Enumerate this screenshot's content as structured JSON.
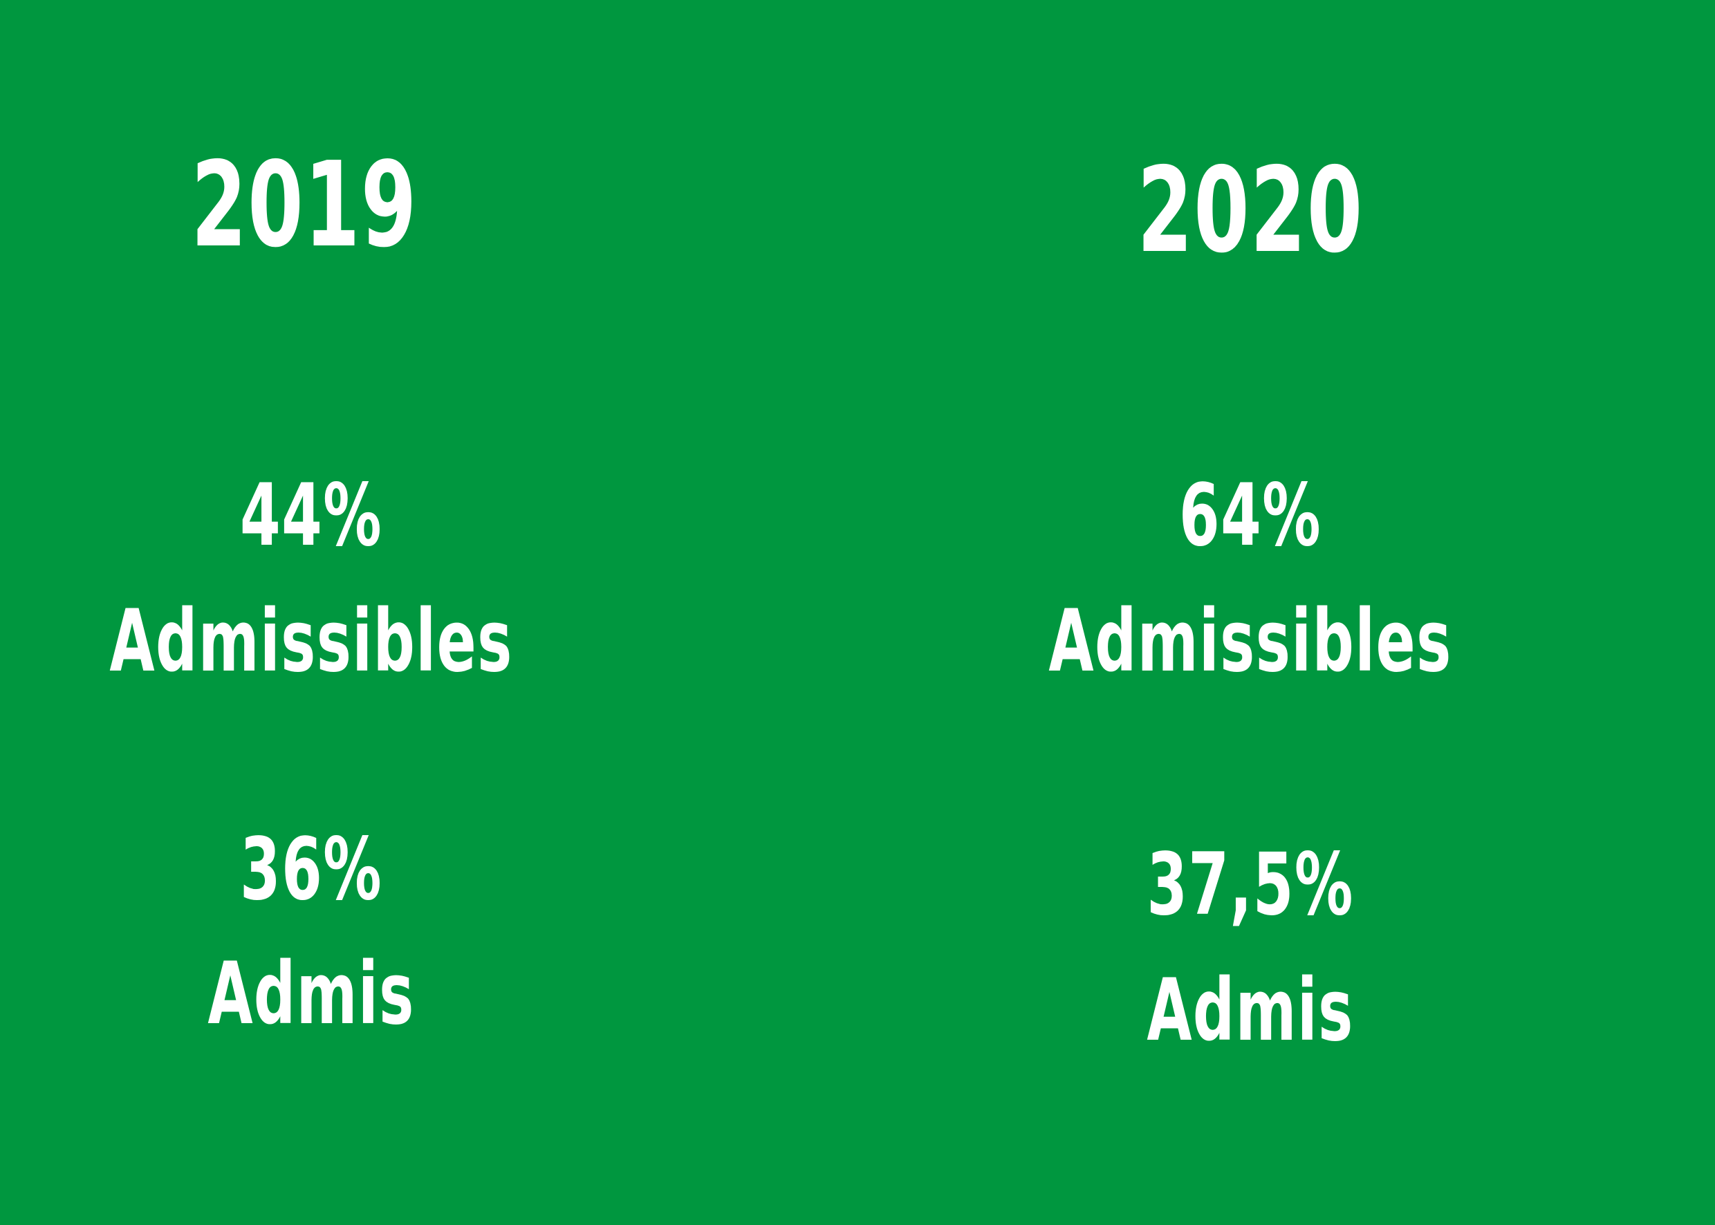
{
  "columns": [
    {
      "year": "2019",
      "admissibles_pct": "44%",
      "admissibles_label": "Admissibles",
      "admis_pct": "36%",
      "admis_label": "Admis"
    },
    {
      "year": "2020",
      "admissibles_pct": "64%",
      "admissibles_label": "Admissibles",
      "admis_pct": "37,5%",
      "admis_label": "Admis"
    }
  ],
  "colors": {
    "background": "#00973f",
    "text": "#ffffff"
  }
}
